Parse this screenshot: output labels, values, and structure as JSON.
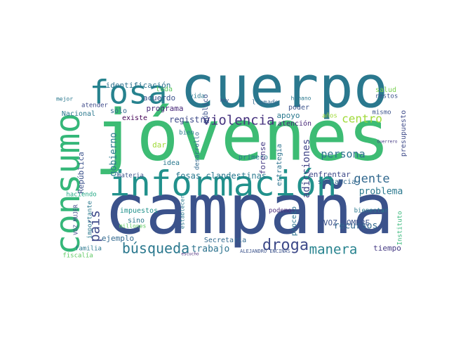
{
  "chart_data": {
    "type": "wordcloud",
    "words": [
      {
        "text": "jóvenes",
        "color": "#3dbc74"
      },
      {
        "text": "campaña",
        "color": "#3b528b"
      },
      {
        "text": "cuerpo",
        "color": "#2a788e"
      },
      {
        "text": "información",
        "color": "#21918c"
      },
      {
        "text": "consumo",
        "color": "#35b779"
      },
      {
        "text": "fosa",
        "color": "#26828e"
      },
      {
        "text": "violencia",
        "color": "#46327e"
      },
      {
        "text": "búsqueda",
        "color": "#2a788e"
      },
      {
        "text": "droga",
        "color": "#3e4a89"
      },
      {
        "text": "manera",
        "color": "#26828e"
      },
      {
        "text": "gente",
        "color": "#31688e"
      },
      {
        "text": "país",
        "color": "#3e4989"
      },
      {
        "text": "centro",
        "color": "#a0da39"
      },
      {
        "text": "persona",
        "color": "#2c728e"
      },
      {
        "text": "adicciones",
        "color": "#414487"
      },
      {
        "text": "problema",
        "color": "#2a788e"
      },
      {
        "text": "recursos",
        "color": "#31688e"
      },
      {
        "text": "gobierno",
        "color": "#2a788e"
      },
      {
        "text": "trabajo",
        "color": "#2c728e"
      },
      {
        "text": "VOZ HOMBRE",
        "color": "#3b528b"
      },
      {
        "text": "fosas clandestinas",
        "color": "#2a788e"
      },
      {
        "text": "registro",
        "color": "#3e4a89"
      },
      {
        "text": "identificación",
        "color": "#2c728e"
      },
      {
        "text": "acuerdo",
        "color": "#3b528b"
      },
      {
        "text": "programa",
        "color": "#482878"
      },
      {
        "text": "toda",
        "color": "#5ec962"
      },
      {
        "text": "salud",
        "color": "#7ad151"
      },
      {
        "text": "Nacional",
        "color": "#2a788e"
      },
      {
        "text": "República",
        "color": "#3b528b"
      },
      {
        "text": "ejemplo",
        "color": "#31688e"
      },
      {
        "text": "familia",
        "color": "#2a788e"
      },
      {
        "text": "fiscalía",
        "color": "#5ec962"
      },
      {
        "text": "Secretaría",
        "color": "#31688e"
      },
      {
        "text": "tiempo",
        "color": "#443983"
      },
      {
        "text": "bienestar",
        "color": "#2a788e"
      },
      {
        "text": "podemos",
        "color": "#482878"
      },
      {
        "text": "proceso",
        "color": "#2c728e"
      },
      {
        "text": "enfrentar",
        "color": "#3e4a89"
      },
      {
        "text": "sustancia",
        "color": "#31688e"
      },
      {
        "text": "materia",
        "color": "#3b528b"
      },
      {
        "text": "idea",
        "color": "#2a788e"
      },
      {
        "text": "dar",
        "color": "#a0da39"
      },
      {
        "text": "primero",
        "color": "#2a788e"
      },
      {
        "text": "forense",
        "color": "#443983"
      },
      {
        "text": "estrategia",
        "color": "#2c728e"
      },
      {
        "text": "apoyo",
        "color": "#2a788e"
      },
      {
        "text": "poder",
        "color": "#3b528b"
      },
      {
        "text": "atención",
        "color": "#482878"
      },
      {
        "text": "existe",
        "color": "#440154"
      },
      {
        "text": "sólo",
        "color": "#31688e"
      },
      {
        "text": "atender",
        "color": "#3e4a89"
      },
      {
        "text": "mejor",
        "color": "#2a788e"
      },
      {
        "text": "vida",
        "color": "#2a788e"
      },
      {
        "text": "público",
        "color": "#3b528b"
      },
      {
        "text": "llamado",
        "color": "#31688e"
      },
      {
        "text": "humano",
        "color": "#2a788e"
      },
      {
        "text": "mismo",
        "color": "#3b528b"
      },
      {
        "text": "presupuesto",
        "color": "#3e4a89"
      },
      {
        "text": "impuestos",
        "color": "#21918c"
      },
      {
        "text": "sino",
        "color": "#2a788e"
      },
      {
        "text": "millones",
        "color": "#5ec962"
      },
      {
        "text": "haciendo",
        "color": "#22a884"
      },
      {
        "text": "importante",
        "color": "#2a788e"
      },
      {
        "text": "VOZ MUJER",
        "color": "#3e4a89"
      },
      {
        "text": "desarrollo",
        "color": "#31688e"
      },
      {
        "text": "bien",
        "color": "#2a788e"
      },
      {
        "text": "Instituto",
        "color": "#35b779"
      },
      {
        "text": "ALEJANDRO ENCINAS",
        "color": "#3b528b"
      },
      {
        "text": "escucho",
        "color": "#482878"
      },
      {
        "text": "establecer",
        "color": "#2a788e"
      },
      {
        "text": "años",
        "color": "#a0da39"
      },
      {
        "text": "restos",
        "color": "#3b528b"
      },
      {
        "text": "Guerrero",
        "color": "#443983"
      },
      {
        "text": "hoy",
        "color": "#3b528b"
      },
      {
        "text": "bien",
        "color": "#2a788e"
      }
    ]
  }
}
